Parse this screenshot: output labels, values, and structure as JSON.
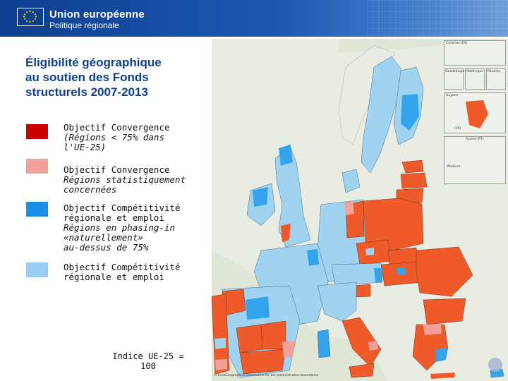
{
  "header": {
    "brand_line1": "Union européenne",
    "brand_line2": "Politique régionale"
  },
  "title": "Éligibilité géographique\nau soutien des Fonds\nstructurels 2007-2013",
  "legend": [
    {
      "label": "Objectif Convergence",
      "sub": "(Régions < 75% dans\nl'UE-25)",
      "color": "#cc0000"
    },
    {
      "label": "Objectif Convergence",
      "sub": "Régions statistiquement\nconcernées",
      "color": "#f4a09a"
    },
    {
      "label": "Objectif Compétitivité\nrégionale et emploi",
      "sub": "Régions en phasing-in\n«naturellement»\nau-dessus de 75%",
      "color": "#1a8fe8"
    },
    {
      "label": "Objectif Compétitivité\nrégionale et emploi",
      "sub": "",
      "color": "#99ccf5"
    }
  ],
  "indice": "Indice UE-25 =\n100",
  "map": {
    "colors": {
      "sea": "#dfe6d6",
      "convergence": "#ee5a2a",
      "stat": "#f4a09a",
      "phasing": "#33a3ec",
      "competitivite": "#9fd3f0",
      "nonEU": "#e9ece3"
    },
    "insets": [
      "Canarias (ES)",
      "Guadeloupe",
      "Martinique",
      "Réunion",
      "Guyane",
      "Açores (PT)",
      "Madeira",
      "(FR)"
    ],
    "credit": "© EuroGeographics Association for the administrative boundaries"
  },
  "icons": {
    "flag": "eu-flag-icon"
  }
}
